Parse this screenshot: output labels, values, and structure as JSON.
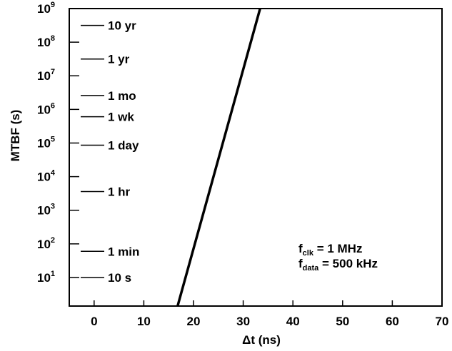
{
  "chart_data": {
    "type": "line",
    "xlabel": "Δt (ns)",
    "ylabel": "MTBF (s)",
    "xlim": [
      -5,
      70
    ],
    "ylim": [
      0.15,
      9
    ],
    "y_scale": "log",
    "x_ticks": [
      0,
      10,
      20,
      30,
      40,
      50,
      60,
      70
    ],
    "x_tick_labels": [
      "0",
      "10",
      "20",
      "30",
      "40",
      "50",
      "60",
      "70"
    ],
    "y_ticks": [
      {
        "exp": 1,
        "base": "10",
        "sup": "1"
      },
      {
        "exp": 2,
        "base": "10",
        "sup": "2"
      },
      {
        "exp": 3,
        "base": "10",
        "sup": "3"
      },
      {
        "exp": 4,
        "base": "10",
        "sup": "4"
      },
      {
        "exp": 5,
        "base": "10",
        "sup": "5"
      },
      {
        "exp": 6,
        "base": "10",
        "sup": "6"
      },
      {
        "exp": 7,
        "base": "10",
        "sup": "7"
      },
      {
        "exp": 8,
        "base": "10",
        "sup": "8"
      },
      {
        "exp": 9,
        "base": "10",
        "sup": "9"
      }
    ],
    "grid": false,
    "legend": "none",
    "series": [
      {
        "x": [
          16.8,
          33.4
        ],
        "log10_y": [
          0.15,
          9
        ]
      }
    ],
    "reference_levels": [
      {
        "label": "10 yr",
        "seconds": 315360000
      },
      {
        "label": "1 yr",
        "seconds": 31536000
      },
      {
        "label": "1 mo",
        "seconds": 2592000
      },
      {
        "label": "1 wk",
        "seconds": 604800
      },
      {
        "label": "1 day",
        "seconds": 86400
      },
      {
        "label": "1 hr",
        "seconds": 3600
      },
      {
        "label": "1 min",
        "seconds": 60
      },
      {
        "label": "10 s",
        "seconds": 10
      }
    ],
    "annotations": [
      {
        "main": "f",
        "sub": "clk",
        "rest": " = 1 MHz"
      },
      {
        "main": "f",
        "sub": "data",
        "rest": " = 500 kHz"
      }
    ]
  }
}
